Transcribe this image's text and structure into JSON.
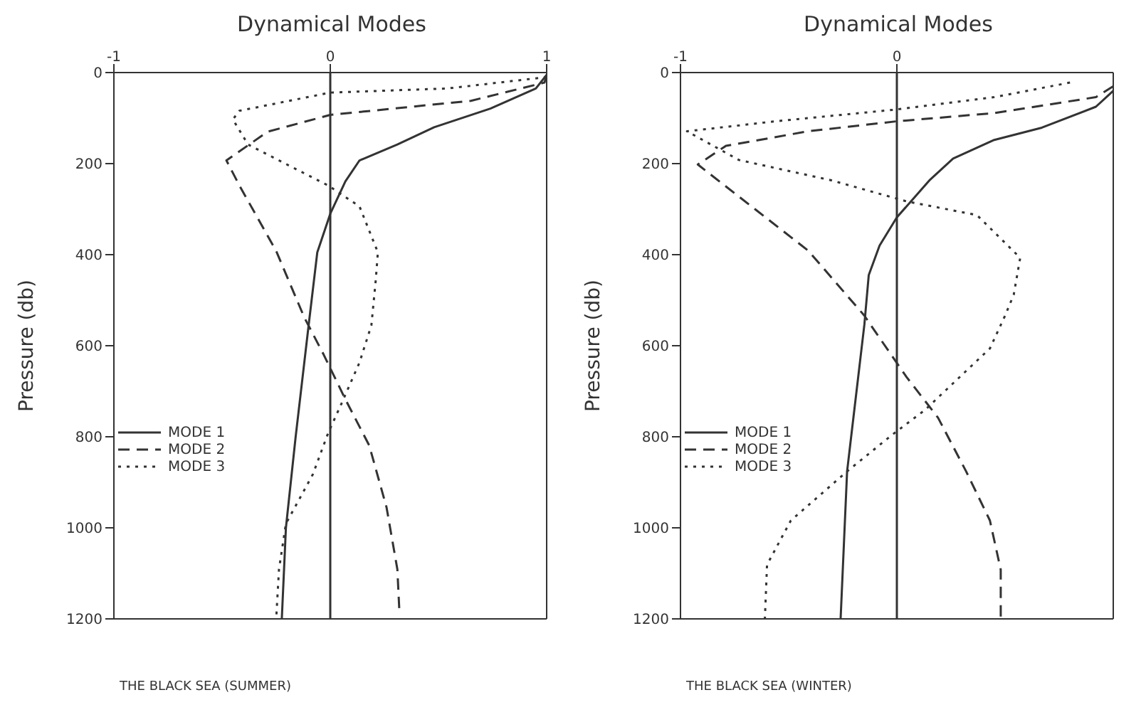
{
  "chart_data": [
    {
      "type": "line",
      "title": "Dynamical Modes",
      "ylabel": "Pressure (db)",
      "xlim": [
        -1,
        1
      ],
      "xticks": [
        -1,
        0,
        1
      ],
      "ylim": [
        1200,
        0
      ],
      "yticks": [
        0,
        200,
        400,
        600,
        800,
        1000,
        1200
      ],
      "legend": "left",
      "marker": "none",
      "ref_lines": [
        {
          "axis": "x",
          "value": 0,
          "color": "#333333"
        }
      ],
      "annotations": [
        "THE BLACK SEA (SUMMER)"
      ],
      "series": [
        {
          "name": "MODE 1",
          "color": "#333333",
          "line_style": "solid",
          "x": [
            1,
            0.95,
            0.74,
            0.48,
            0.31,
            0.135,
            0.07,
            0,
            -0.06,
            -0.1,
            -0.16,
            -0.205,
            -0.224
          ],
          "values": [
            5,
            35,
            79,
            120,
            158,
            193,
            239,
            310,
            395,
            555,
            800,
            1000,
            1200
          ]
        },
        {
          "name": "MODE 2",
          "color": "#333333",
          "line_style": "dashed",
          "x": [
            1,
            0.99,
            0.65,
            0,
            -0.29,
            -0.48,
            -0.42,
            -0.25,
            -0.12,
            -0.03,
            0.07,
            0.18,
            0.26,
            0.31,
            0.32
          ],
          "values": [
            5,
            22,
            62,
            93,
            130,
            193,
            248,
            392,
            538,
            620,
            718,
            819,
            955,
            1091,
            1190
          ]
        },
        {
          "name": "MODE 3",
          "color": "#333333",
          "line_style": "dotted",
          "x": [
            1,
            0.54,
            0,
            -0.42,
            -0.45,
            -0.38,
            -0.2,
            -0.01,
            0.135,
            0.22,
            0.21,
            0.19,
            0.135,
            0.05,
            -0.01,
            -0.08,
            -0.205,
            -0.237,
            -0.25
          ],
          "values": [
            10,
            35,
            44,
            84,
            103,
            158,
            202,
            248,
            294,
            395,
            457,
            555,
            637,
            729,
            792,
            882,
            991,
            1091,
            1200
          ]
        }
      ]
    },
    {
      "type": "line",
      "title": "Dynamical Modes",
      "ylabel": "Pressure (db)",
      "xlim": [
        -1,
        1
      ],
      "xticks": [
        -1,
        0
      ],
      "ylim": [
        1200,
        0
      ],
      "yticks": [
        0,
        200,
        400,
        600,
        800,
        1000,
        1200
      ],
      "legend": "left",
      "marker": "none",
      "ref_lines": [
        {
          "axis": "x",
          "value": 0,
          "color": "#333333"
        }
      ],
      "annotations": [
        "THE BLACK SEA (WINTER)"
      ],
      "series": [
        {
          "name": "MODE 1",
          "color": "#333333",
          "line_style": "solid",
          "x": [
            1,
            0.92,
            0.67,
            0.45,
            0.26,
            0.15,
            0,
            -0.08,
            -0.13,
            -0.15,
            -0.21,
            -0.23,
            -0.26
          ],
          "values": [
            40,
            75,
            121,
            148,
            189,
            237,
            318,
            380,
            445,
            553,
            795,
            876,
            1200
          ]
        },
        {
          "name": "MODE 2",
          "color": "#333333",
          "line_style": "dashed",
          "x": [
            1,
            0.92,
            0.45,
            0,
            -0.41,
            -0.79,
            -0.92,
            -0.68,
            -0.41,
            -0.15,
            -0.1,
            0.045,
            0.19,
            0.32,
            0.43,
            0.48,
            0.48
          ],
          "values": [
            30,
            54,
            89,
            107,
            129,
            161,
            202,
            291,
            391,
            534,
            569,
            669,
            758,
            876,
            984,
            1092,
            1200
          ]
        },
        {
          "name": "MODE 3",
          "color": "#333333",
          "line_style": "dotted",
          "x": [
            0.8,
            0.45,
            0,
            -0.56,
            -0.97,
            -0.73,
            -0.3,
            0.045,
            0.37,
            0.57,
            0.54,
            0.5,
            0.43,
            0.13,
            -0.02,
            -0.23,
            -0.49,
            -0.6,
            -0.61
          ],
          "values": [
            22,
            54,
            81,
            107,
            129,
            192,
            237,
            283,
            313,
            407,
            488,
            534,
            606,
            741,
            795,
            876,
            984,
            1081,
            1200
          ]
        }
      ]
    }
  ]
}
